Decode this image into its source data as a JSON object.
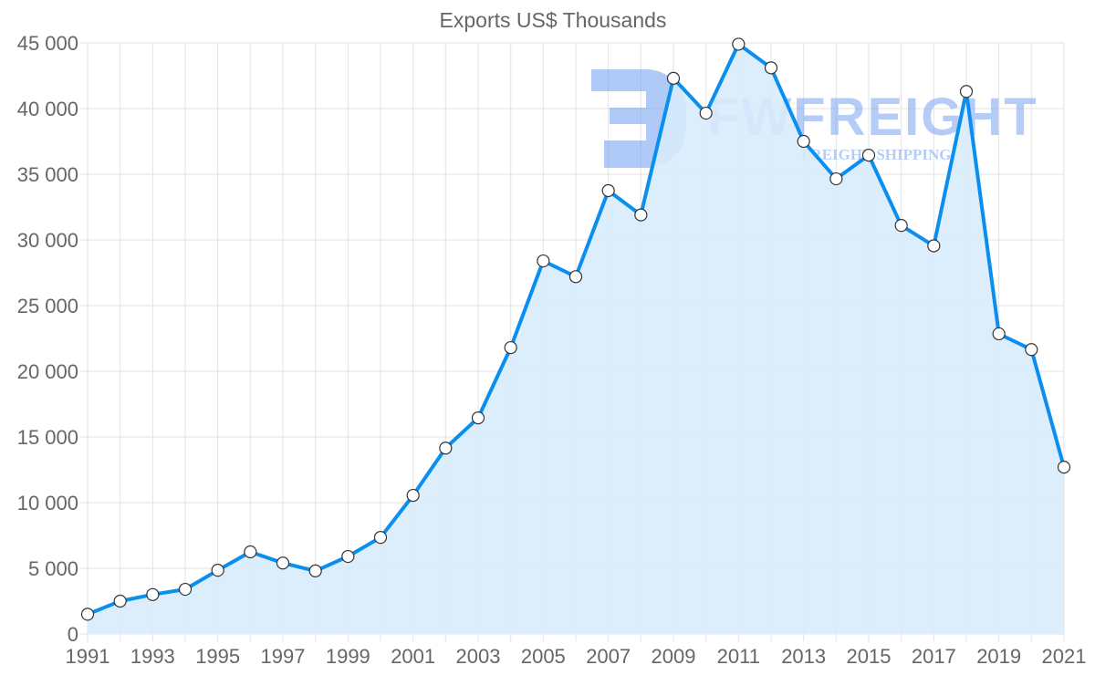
{
  "chart_data": {
    "type": "area",
    "title": "Exports US$ Thousands",
    "xlabel": "",
    "ylabel": "",
    "ylim": [
      0,
      45000
    ],
    "yticks": [
      0,
      5000,
      10000,
      15000,
      20000,
      25000,
      30000,
      35000,
      40000,
      45000
    ],
    "ytick_labels": [
      "0",
      "5 000",
      "10 000",
      "15 000",
      "20 000",
      "25 000",
      "30 000",
      "35 000",
      "40 000",
      "45 000"
    ],
    "xtick_labels": [
      "1991",
      "1993",
      "1995",
      "1997",
      "1999",
      "2001",
      "2003",
      "2005",
      "2007",
      "2009",
      "2011",
      "2013",
      "2015",
      "2017",
      "2019",
      "2021"
    ],
    "grid": true,
    "x": [
      1991,
      1992,
      1993,
      1994,
      1995,
      1996,
      1997,
      1998,
      1999,
      2000,
      2001,
      2002,
      2003,
      2004,
      2005,
      2006,
      2007,
      2008,
      2009,
      2010,
      2011,
      2012,
      2013,
      2014,
      2015,
      2016,
      2017,
      2018,
      2019,
      2020,
      2021
    ],
    "series": [
      {
        "name": "Exports US$ Thousands",
        "values": [
          1500,
          2500,
          3000,
          3400,
          4850,
          6250,
          5400,
          4800,
          5900,
          7350,
          10550,
          14150,
          16450,
          21800,
          28400,
          27200,
          33750,
          31900,
          42300,
          39650,
          44900,
          43100,
          37500,
          34650,
          36450,
          31100,
          29550,
          41300,
          22850,
          21650,
          12700
        ]
      }
    ],
    "colors": {
      "line": "#0a8ff0",
      "fill": "#d8ebfc",
      "grid": "#e3e3e3",
      "point_fill": "#ffffff",
      "point_stroke": "#333333"
    }
  },
  "watermark": {
    "brand": "FWFREIGHT",
    "tagline": "FREIGHT SHIPPING"
  }
}
